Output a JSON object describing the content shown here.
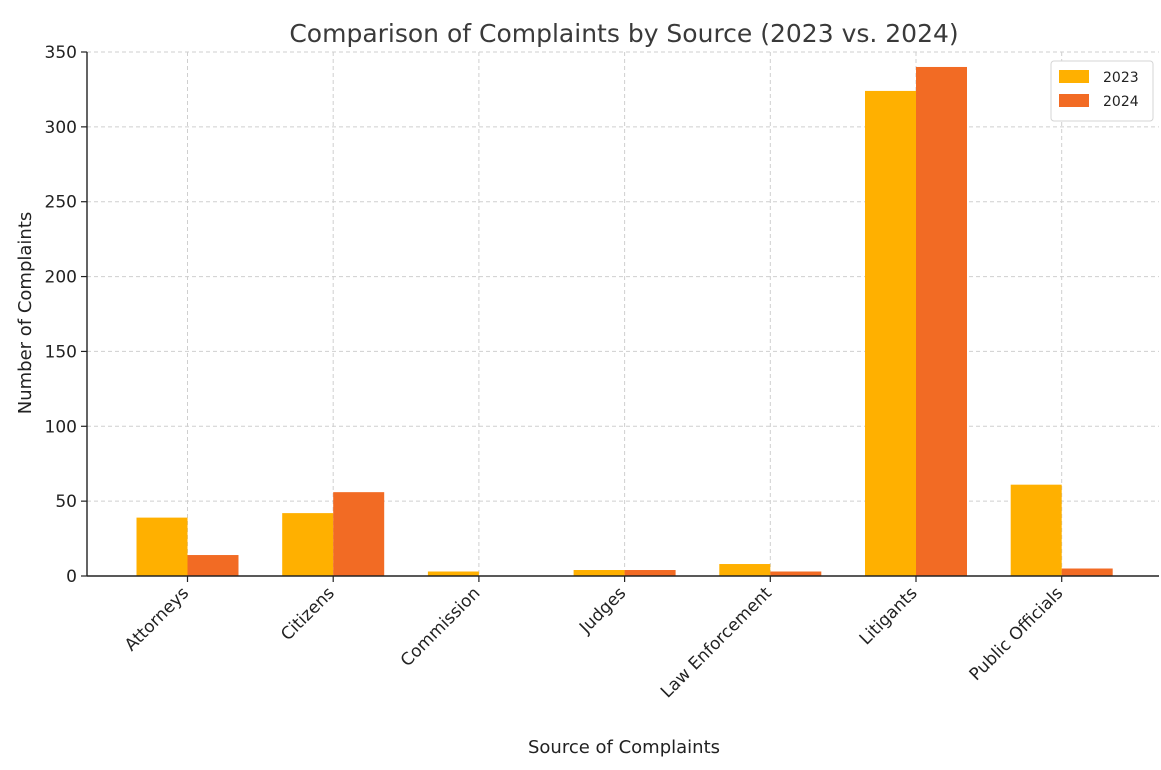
{
  "chart_data": {
    "type": "bar",
    "title": "Comparison of Complaints by Source (2023 vs. 2024)",
    "xlabel": "Source of Complaints",
    "ylabel": "Number of Complaints",
    "categories": [
      "Attorneys",
      "Citizens",
      "Commission",
      "Judges",
      "Law Enforcement",
      "Litigants",
      "Public Officials"
    ],
    "series": [
      {
        "name": "2023",
        "values": [
          39,
          42,
          3,
          4,
          8,
          324,
          61
        ],
        "color": "#FFB000"
      },
      {
        "name": "2024",
        "values": [
          14,
          56,
          0,
          4,
          3,
          340,
          5
        ],
        "color": "#F26B24"
      }
    ],
    "ylim": [
      0,
      350
    ],
    "yticks": [
      0,
      50,
      100,
      150,
      200,
      250,
      300,
      350
    ],
    "grid": true,
    "legend_position": "top-right"
  }
}
